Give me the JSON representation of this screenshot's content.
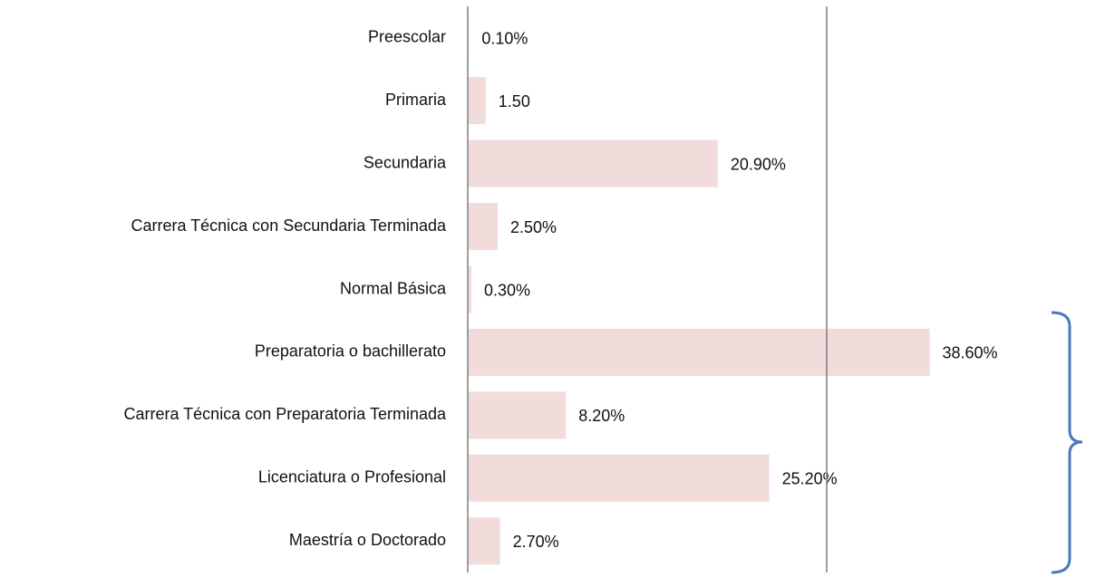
{
  "chart_data": {
    "type": "barh",
    "categories": [
      "Preescolar",
      "Primaria",
      "Secundaria",
      "Carrera Técnica con Secundaria Terminada",
      "Normal Básica",
      "Preparatoria o bachillerato",
      "Carrera Técnica con Preparatoria Terminada",
      "Licenciatura o Profesional",
      "Maestría o Doctorado"
    ],
    "values": [
      0.1,
      1.5,
      20.9,
      2.5,
      0.3,
      38.6,
      8.2,
      25.2,
      2.7
    ],
    "value_labels": [
      "0.10%",
      "1.50",
      "20.90%",
      "2.50%",
      "0.30%",
      "38.60%",
      "8.20%",
      "25.20%",
      "2.70%"
    ],
    "color": "#f2dcdb",
    "xlim": [
      0,
      40
    ],
    "xticks": [
      0,
      30
    ],
    "grid": true
  }
}
